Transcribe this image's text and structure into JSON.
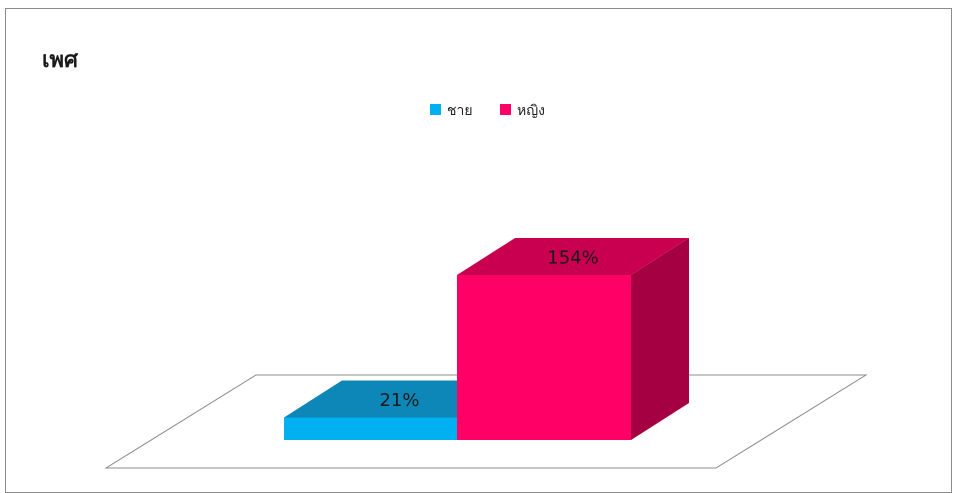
{
  "chart_data": {
    "type": "bar",
    "title": "เพศ",
    "categories": [
      "ชาย",
      "หญิง"
    ],
    "values": [
      21,
      154
    ],
    "value_labels": [
      "21%",
      "154%"
    ],
    "legend": [
      "ชาย",
      "หญิง"
    ],
    "legend_position": "top",
    "colors": {
      "male_front": "#00b0f0",
      "male_top": "#0d86b8",
      "female_front": "#ff0066",
      "female_top": "#c8004f",
      "female_side": "#a40042"
    },
    "style": "3d-bar",
    "grid": false
  }
}
